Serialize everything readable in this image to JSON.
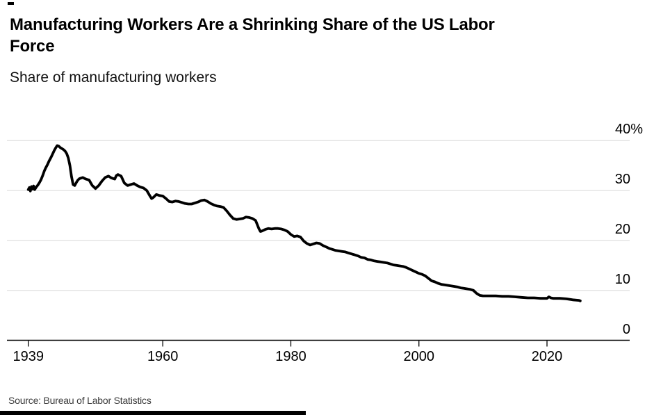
{
  "page": {
    "background": "#ffffff"
  },
  "header": {
    "title_line1": "Manufacturing Workers Are a Shrinking Share of the US Labor",
    "title_line2": "Force",
    "subtitle": "Share of manufacturing workers"
  },
  "footer": {
    "source": "Source: Bureau of Labor Statistics"
  },
  "chart_data": {
    "type": "line",
    "title": "Manufacturing Workers Are a Shrinking Share of the US Labor Force",
    "subtitle": "Share of manufacturing workers",
    "source": "Source: Bureau of Labor Statistics",
    "xlabel": "",
    "ylabel": "Share of manufacturing workers (%)",
    "xlim": [
      1939,
      2033
    ],
    "ylim": [
      0,
      40
    ],
    "grid": "horizontal",
    "legend": "none",
    "line_color": "#000000",
    "grid_color": "#d8d8d8",
    "axis_color": "#000000",
    "y_ticks": [
      {
        "label": "40%",
        "value": 40
      },
      {
        "label": "30",
        "value": 30
      },
      {
        "label": "20",
        "value": 20
      },
      {
        "label": "10",
        "value": 10
      },
      {
        "label": "0",
        "value": 0
      }
    ],
    "x_ticks": [
      {
        "label": "1939",
        "value": 1939
      },
      {
        "label": "1960",
        "value": 1960
      },
      {
        "label": "1980",
        "value": 1980
      },
      {
        "label": "2000",
        "value": 2000
      },
      {
        "label": "2020",
        "value": 2020
      }
    ],
    "series": [
      {
        "name": "Share of manufacturing workers",
        "points": [
          [
            1939.0,
            30.2
          ],
          [
            1939.17,
            30.6
          ],
          [
            1939.33,
            29.9
          ],
          [
            1939.5,
            30.8
          ],
          [
            1939.67,
            30.3
          ],
          [
            1939.83,
            30.9
          ],
          [
            1940.0,
            30.2
          ],
          [
            1940.25,
            30.7
          ],
          [
            1940.5,
            31.1
          ],
          [
            1940.75,
            31.6
          ],
          [
            1941.0,
            32.2
          ],
          [
            1941.25,
            33.0
          ],
          [
            1941.5,
            33.9
          ],
          [
            1941.75,
            34.6
          ],
          [
            1942.0,
            35.2
          ],
          [
            1942.25,
            35.9
          ],
          [
            1942.5,
            36.5
          ],
          [
            1942.75,
            37.2
          ],
          [
            1943.0,
            37.9
          ],
          [
            1943.25,
            38.5
          ],
          [
            1943.5,
            39.0
          ],
          [
            1943.75,
            38.9
          ],
          [
            1944.0,
            38.6
          ],
          [
            1944.25,
            38.4
          ],
          [
            1944.5,
            38.2
          ],
          [
            1944.75,
            37.9
          ],
          [
            1945.0,
            37.4
          ],
          [
            1945.25,
            36.5
          ],
          [
            1945.5,
            35.0
          ],
          [
            1945.75,
            32.8
          ],
          [
            1946.0,
            31.2
          ],
          [
            1946.25,
            31.0
          ],
          [
            1946.5,
            31.6
          ],
          [
            1946.75,
            32.1
          ],
          [
            1947.0,
            32.4
          ],
          [
            1947.5,
            32.6
          ],
          [
            1948.0,
            32.3
          ],
          [
            1948.5,
            32.1
          ],
          [
            1949.0,
            31.0
          ],
          [
            1949.5,
            30.4
          ],
          [
            1950.0,
            31.0
          ],
          [
            1950.5,
            31.9
          ],
          [
            1951.0,
            32.6
          ],
          [
            1951.5,
            32.9
          ],
          [
            1952.0,
            32.5
          ],
          [
            1952.5,
            32.3
          ],
          [
            1952.75,
            33.0
          ],
          [
            1953.0,
            33.2
          ],
          [
            1953.5,
            32.9
          ],
          [
            1954.0,
            31.5
          ],
          [
            1954.5,
            31.0
          ],
          [
            1955.0,
            31.2
          ],
          [
            1955.5,
            31.4
          ],
          [
            1956.0,
            31.0
          ],
          [
            1956.5,
            30.7
          ],
          [
            1957.0,
            30.5
          ],
          [
            1957.5,
            30.0
          ],
          [
            1958.0,
            28.9
          ],
          [
            1958.25,
            28.4
          ],
          [
            1958.5,
            28.6
          ],
          [
            1959.0,
            29.2
          ],
          [
            1959.5,
            29.0
          ],
          [
            1960.0,
            28.9
          ],
          [
            1960.5,
            28.4
          ],
          [
            1961.0,
            27.8
          ],
          [
            1961.5,
            27.7
          ],
          [
            1962.0,
            27.9
          ],
          [
            1962.5,
            27.8
          ],
          [
            1963.0,
            27.6
          ],
          [
            1963.5,
            27.4
          ],
          [
            1964.0,
            27.3
          ],
          [
            1964.5,
            27.3
          ],
          [
            1965.0,
            27.5
          ],
          [
            1965.5,
            27.7
          ],
          [
            1966.0,
            28.0
          ],
          [
            1966.5,
            28.1
          ],
          [
            1967.0,
            27.8
          ],
          [
            1967.5,
            27.4
          ],
          [
            1968.0,
            27.1
          ],
          [
            1968.5,
            26.9
          ],
          [
            1969.0,
            26.8
          ],
          [
            1969.5,
            26.6
          ],
          [
            1970.0,
            25.9
          ],
          [
            1970.5,
            25.1
          ],
          [
            1971.0,
            24.4
          ],
          [
            1971.5,
            24.2
          ],
          [
            1972.0,
            24.3
          ],
          [
            1972.5,
            24.4
          ],
          [
            1973.0,
            24.7
          ],
          [
            1973.5,
            24.6
          ],
          [
            1974.0,
            24.4
          ],
          [
            1974.5,
            24.0
          ],
          [
            1975.0,
            22.4
          ],
          [
            1975.25,
            21.8
          ],
          [
            1975.5,
            21.9
          ],
          [
            1976.0,
            22.2
          ],
          [
            1976.5,
            22.4
          ],
          [
            1977.0,
            22.3
          ],
          [
            1977.5,
            22.4
          ],
          [
            1978.0,
            22.4
          ],
          [
            1978.5,
            22.3
          ],
          [
            1979.0,
            22.1
          ],
          [
            1979.5,
            21.8
          ],
          [
            1980.0,
            21.2
          ],
          [
            1980.5,
            20.8
          ],
          [
            1981.0,
            20.9
          ],
          [
            1981.5,
            20.7
          ],
          [
            1982.0,
            19.9
          ],
          [
            1982.5,
            19.4
          ],
          [
            1983.0,
            19.1
          ],
          [
            1983.5,
            19.3
          ],
          [
            1984.0,
            19.5
          ],
          [
            1984.5,
            19.4
          ],
          [
            1985.0,
            19.0
          ],
          [
            1985.5,
            18.7
          ],
          [
            1986.0,
            18.4
          ],
          [
            1986.5,
            18.2
          ],
          [
            1987.0,
            18.0
          ],
          [
            1987.5,
            17.9
          ],
          [
            1988.0,
            17.8
          ],
          [
            1988.5,
            17.7
          ],
          [
            1989.0,
            17.5
          ],
          [
            1989.5,
            17.3
          ],
          [
            1990.0,
            17.1
          ],
          [
            1990.5,
            16.9
          ],
          [
            1991.0,
            16.6
          ],
          [
            1991.5,
            16.5
          ],
          [
            1992.0,
            16.2
          ],
          [
            1992.5,
            16.1
          ],
          [
            1993.0,
            15.9
          ],
          [
            1993.5,
            15.8
          ],
          [
            1994.0,
            15.7
          ],
          [
            1994.5,
            15.6
          ],
          [
            1995.0,
            15.5
          ],
          [
            1995.5,
            15.3
          ],
          [
            1996.0,
            15.1
          ],
          [
            1996.5,
            15.0
          ],
          [
            1997.0,
            14.9
          ],
          [
            1997.5,
            14.8
          ],
          [
            1998.0,
            14.6
          ],
          [
            1998.5,
            14.3
          ],
          [
            1999.0,
            14.0
          ],
          [
            1999.5,
            13.7
          ],
          [
            2000.0,
            13.4
          ],
          [
            2000.5,
            13.2
          ],
          [
            2001.0,
            12.9
          ],
          [
            2001.5,
            12.4
          ],
          [
            2002.0,
            11.9
          ],
          [
            2002.5,
            11.7
          ],
          [
            2003.0,
            11.4
          ],
          [
            2003.5,
            11.2
          ],
          [
            2004.0,
            11.1
          ],
          [
            2004.5,
            11.0
          ],
          [
            2005.0,
            10.9
          ],
          [
            2005.5,
            10.8
          ],
          [
            2006.0,
            10.7
          ],
          [
            2006.5,
            10.5
          ],
          [
            2007.0,
            10.4
          ],
          [
            2007.5,
            10.3
          ],
          [
            2008.0,
            10.2
          ],
          [
            2008.5,
            10.0
          ],
          [
            2009.0,
            9.4
          ],
          [
            2009.5,
            9.0
          ],
          [
            2010.0,
            8.9
          ],
          [
            2010.5,
            8.9
          ],
          [
            2011.0,
            8.9
          ],
          [
            2012.0,
            8.9
          ],
          [
            2013.0,
            8.8
          ],
          [
            2014.0,
            8.8
          ],
          [
            2015.0,
            8.7
          ],
          [
            2016.0,
            8.6
          ],
          [
            2017.0,
            8.5
          ],
          [
            2018.0,
            8.5
          ],
          [
            2019.0,
            8.4
          ],
          [
            2020.0,
            8.4
          ],
          [
            2020.3,
            8.7
          ],
          [
            2020.6,
            8.5
          ],
          [
            2021.0,
            8.4
          ],
          [
            2022.0,
            8.4
          ],
          [
            2023.0,
            8.3
          ],
          [
            2024.0,
            8.1
          ],
          [
            2025.0,
            8.0
          ],
          [
            2025.2,
            7.9
          ]
        ]
      }
    ]
  }
}
